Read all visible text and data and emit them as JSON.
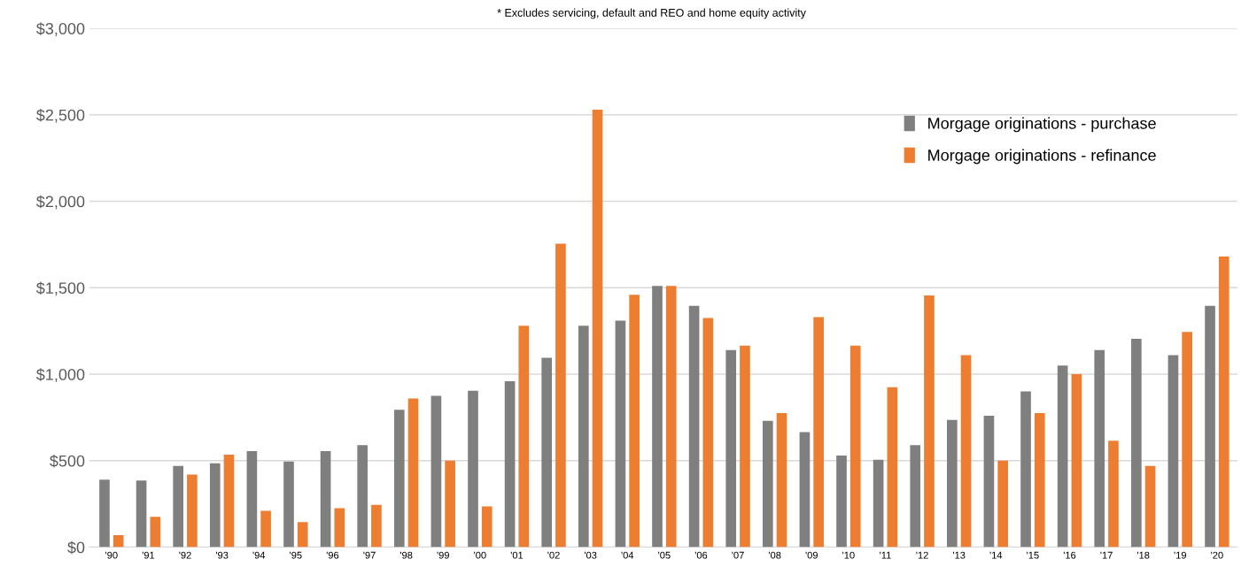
{
  "chart_data": {
    "type": "bar",
    "annotations": [
      "* Excludes servicing, default and REO and home equity activity"
    ],
    "categories": [
      "'90",
      "'91",
      "'92",
      "'93",
      "'94",
      "'95",
      "'96",
      "'97",
      "'98",
      "'99",
      "'00",
      "'01",
      "'02",
      "'03",
      "'04",
      "'05",
      "'06",
      "'07",
      "'08",
      "'09",
      "'10",
      "'11",
      "'12",
      "'13",
      "'14",
      "'15",
      "'16",
      "'17",
      "'18",
      "'19",
      "'20"
    ],
    "series": [
      {
        "name": "Morgage originations - purchase",
        "color": "#7f7f7f",
        "values": [
          390,
          385,
          470,
          485,
          555,
          495,
          555,
          590,
          795,
          875,
          905,
          960,
          1095,
          1280,
          1310,
          1510,
          1395,
          1140,
          730,
          665,
          530,
          505,
          590,
          735,
          760,
          900,
          1050,
          1140,
          1205,
          1110,
          1395
        ]
      },
      {
        "name": "Morgage originations - refinance",
        "color": "#ed7d31",
        "values": [
          70,
          175,
          420,
          535,
          210,
          145,
          225,
          245,
          860,
          500,
          235,
          1280,
          1755,
          2530,
          1460,
          1510,
          1325,
          1165,
          775,
          1330,
          1165,
          925,
          1455,
          1110,
          500,
          775,
          1000,
          615,
          470,
          1245,
          1680
        ]
      }
    ],
    "ylim": [
      0,
      3000
    ],
    "yticks": [
      {
        "value": 0,
        "label": "$0"
      },
      {
        "value": 500,
        "label": "$500"
      },
      {
        "value": 1000,
        "label": "$1,000"
      },
      {
        "value": 1500,
        "label": "$1,500"
      },
      {
        "value": 2000,
        "label": "$2,000"
      },
      {
        "value": 2500,
        "label": "$2,500"
      },
      {
        "value": 3000,
        "label": "$3,000"
      }
    ],
    "grid": "y",
    "legend": "top right"
  }
}
